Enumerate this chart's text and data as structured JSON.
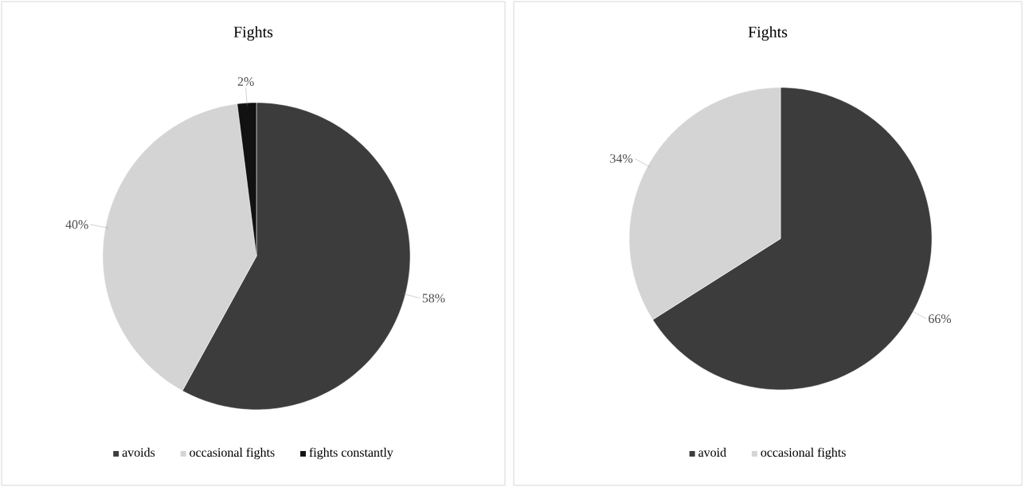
{
  "chart_data": [
    {
      "type": "pie",
      "title": "Fights",
      "categories": [
        "avoids",
        "occasional fights",
        "fights constantly"
      ],
      "values": [
        58,
        40,
        2
      ],
      "value_labels": [
        "58%",
        "40%",
        "2%"
      ],
      "colors": [
        "#3c3c3c",
        "#d4d4d4",
        "#111111"
      ],
      "legend": "bottom"
    },
    {
      "type": "pie",
      "title": "Fights",
      "categories": [
        "avoid",
        "occasional fights"
      ],
      "values": [
        66,
        34
      ],
      "value_labels": [
        "66%",
        "34%"
      ],
      "colors": [
        "#3c3c3c",
        "#d4d4d4"
      ],
      "legend": "bottom"
    }
  ]
}
